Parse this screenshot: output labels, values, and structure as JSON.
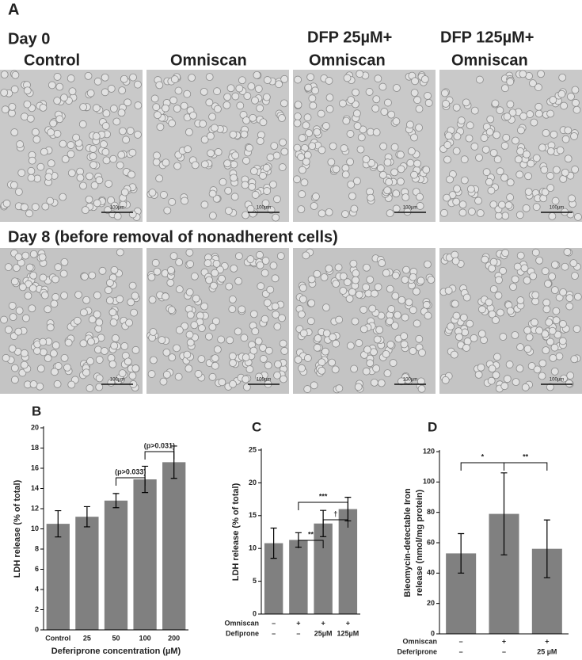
{
  "panel_label": "A",
  "rows": [
    "Day 0",
    "Day 8  (before removal of nonadherent cells)"
  ],
  "columns": [
    [
      "Control"
    ],
    [
      "Omniscan"
    ],
    [
      "DFP 25µM+",
      "Omniscan"
    ],
    [
      "DFP 125µM+",
      "Omniscan"
    ]
  ],
  "scale_bar": "100µm",
  "chart_data": [
    {
      "type": "bar",
      "title": "B",
      "ylabel": [
        "LDH release (% of total)"
      ],
      "xlabel": "Deferiprone concentration (µM)",
      "categories": [
        "Control",
        "25",
        "50",
        "100",
        "200"
      ],
      "values": [
        10.5,
        11.2,
        12.8,
        14.9,
        16.6
      ],
      "errors": [
        1.3,
        1.0,
        0.7,
        1.3,
        1.6
      ],
      "color": "#808080",
      "ylim": [
        0,
        20
      ],
      "yticks": [
        0,
        2,
        4,
        6,
        8,
        10,
        12,
        14,
        16,
        18,
        20
      ],
      "annotations": [
        "(p>0.033)",
        "(p>0.031)"
      ]
    },
    {
      "type": "bar",
      "title": "C",
      "ylabel": [
        "LDH release (% of total)"
      ],
      "categories": [
        null,
        null,
        null,
        null
      ],
      "values": [
        10.8,
        11.3,
        13.8,
        16.0
      ],
      "errors": [
        2.3,
        1.1,
        2.0,
        1.8
      ],
      "color": "#808080",
      "ylim": [
        0,
        25
      ],
      "yticks": [
        0,
        5,
        10,
        15,
        20,
        25
      ],
      "annotations": [
        "**",
        "***",
        "†"
      ],
      "treatments": [
        {
          "name": "Omniscan",
          "values": [
            "–",
            "+",
            "+",
            "+"
          ]
        },
        {
          "name": "Defiprone",
          "values": [
            "–",
            "–",
            "25µM",
            "125µM"
          ]
        }
      ]
    },
    {
      "type": "bar",
      "title": "D",
      "ylabel": [
        "Bleomycin-detectable Iron",
        "release (nmol/mg protein)"
      ],
      "categories": [
        null,
        null,
        null
      ],
      "values": [
        53,
        79,
        56
      ],
      "errors": [
        13,
        27,
        19
      ],
      "color": "#808080",
      "ylim": [
        0,
        120
      ],
      "yticks": [
        0,
        20,
        40,
        60,
        80,
        100,
        120
      ],
      "annotations": [
        "*",
        "**"
      ],
      "treatments": [
        {
          "name": "Omniscan",
          "values": [
            "–",
            "+",
            "+"
          ]
        },
        {
          "name": "Deferiprone",
          "values": [
            "–",
            "–",
            "25 µM"
          ]
        }
      ]
    }
  ]
}
